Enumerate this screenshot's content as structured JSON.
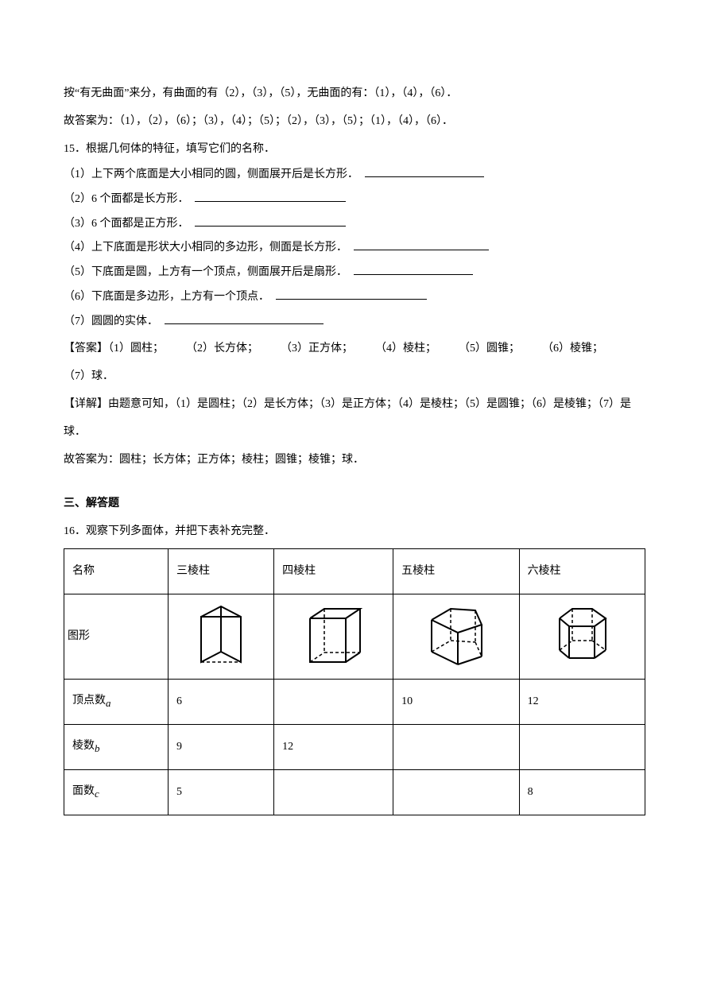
{
  "intro": {
    "line1": "按“有无曲面”来分，有曲面的有（2），（3），（5），无曲面的有：（1），（4），（6）．",
    "line2": "故答案为：（1），（2），（6）；（3），（4）；（5）；（2），（3），（5）；（1），（4），（6）．"
  },
  "q15": {
    "stem": "15．根据几何体的特征，填写它们的名称．",
    "items": [
      "（1）上下两个底面是大小相同的圆，侧面展开后是长方形．",
      "（2）6 个面都是长方形．",
      "（3）6 个面都是正方形．",
      "（4）上下底面是形状大小相同的多边形，侧面是长方形．",
      "（5）下底面是圆，上方有一个顶点，侧面展开后是扇形．",
      "（6）下底面是多边形，上方有一个顶点．",
      "（7）圆圆的实体．"
    ],
    "answer_label": "【答案】",
    "answer_text": "（1）圆柱；  （2）长方体；  （3）正方体；  （4）棱柱；  （5）圆锥；  （6）棱锥；  （7）球．",
    "detail_label": "【详解】",
    "detail_text1": "由题意可知，（1）是圆柱；（2）是长方体；（3）是正方体；（4）是棱柱；（5）是圆锥；（6）是棱锥；（7）是球．",
    "detail_text2": "故答案为：圆柱；长方体；正方体；棱柱；圆锥；棱锥；球．"
  },
  "section3": "三、解答题",
  "q16": {
    "stem": "16．观察下列多面体，并把下表补充完整．",
    "table": {
      "headers": [
        "名称",
        "三棱柱",
        "四棱柱",
        "五棱柱",
        "六棱柱"
      ],
      "row_labels": {
        "shape": "图形",
        "vertices": "顶点数",
        "vertices_sub": "a",
        "edges": "棱数",
        "edges_sub": "b",
        "faces": "面数",
        "faces_sub": "c"
      },
      "vertices": [
        "6",
        "",
        "10",
        "12"
      ],
      "edges": [
        "9",
        "12",
        "",
        ""
      ],
      "faces": [
        "5",
        "",
        "",
        "8"
      ]
    }
  },
  "blank_widths": {
    "w1": 150,
    "w2": 190,
    "w3": 190,
    "w4": 170,
    "w5": 150,
    "w6": 190,
    "w7": 200
  }
}
